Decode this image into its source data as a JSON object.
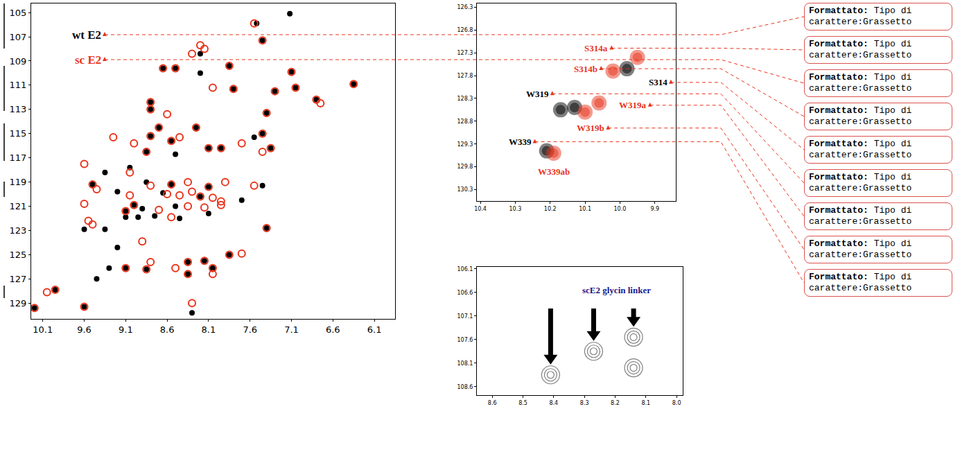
{
  "chart_data": [
    {
      "type": "scatter",
      "xlim": [
        10.24,
        5.85
      ],
      "ylim": [
        130.3,
        104.25
      ],
      "xticks": [
        10.1,
        9.6,
        9.1,
        8.6,
        8.1,
        7.6,
        7.1,
        6.6,
        6.1
      ],
      "yticks": [
        105,
        107,
        109,
        111,
        113,
        115,
        117,
        119,
        121,
        123,
        125,
        127,
        129
      ],
      "grid": false,
      "series": [
        {
          "name": "wt E2",
          "color": "#000000",
          "marker": "circle",
          "x": [
            7.12,
            7.52,
            7.45,
            8.2,
            8.65,
            8.5,
            8.2,
            7.85,
            7.1,
            6.35,
            8.8,
            8.8,
            7.8,
            7.3,
            7.05,
            6.8,
            7.4,
            8.7,
            8.25,
            8.8,
            8.55,
            7.45,
            7.55,
            8.1,
            7.95,
            8.5,
            8.85,
            7.35,
            9.35,
            9.05,
            9.5,
            9.2,
            8.85,
            8.55,
            8.1,
            7.45,
            8.65,
            8.2,
            7.7,
            9.0,
            8.9,
            9.1,
            8.5,
            8.75,
            8.95,
            9.1,
            8.45,
            8.1,
            9.35,
            9.6,
            7.4,
            9.2,
            9.3,
            9.1,
            8.85,
            8.35,
            8.15,
            8.35,
            8.05,
            7.85,
            9.45,
            9.95,
            10.2,
            9.6,
            8.3
          ],
          "values": [
            105.1,
            105.9,
            107.3,
            108.4,
            109.6,
            109.6,
            110.0,
            109.4,
            109.9,
            110.9,
            112.4,
            113.0,
            111.3,
            111.5,
            111.2,
            112.2,
            113.3,
            114.5,
            114.5,
            115.2,
            115.6,
            115.0,
            115.3,
            116.2,
            116.2,
            116.7,
            116.5,
            116.2,
            118.2,
            117.8,
            119.2,
            119.8,
            119.0,
            119.2,
            119.4,
            119.3,
            119.9,
            120.2,
            120.5,
            120.9,
            121.2,
            121.4,
            121.0,
            121.8,
            121.9,
            121.9,
            122.0,
            121.6,
            122.9,
            122.9,
            122.8,
            124.4,
            126.1,
            126.1,
            126.2,
            125.6,
            125.5,
            126.6,
            126.1,
            125.0,
            127.0,
            127.9,
            129.4,
            129.3,
            129.8
          ]
        },
        {
          "name": "sc E2",
          "color": "#e8341c",
          "marker": "circle-open",
          "x": [
            7.55,
            7.45,
            8.2,
            8.15,
            8.3,
            8.65,
            8.5,
            7.85,
            7.1,
            6.35,
            8.8,
            8.8,
            7.8,
            8.05,
            7.3,
            7.05,
            6.8,
            6.75,
            7.4,
            8.6,
            8.7,
            8.25,
            8.8,
            8.55,
            8.45,
            7.45,
            7.7,
            9.25,
            9.0,
            8.1,
            7.95,
            8.85,
            7.35,
            7.45,
            9.6,
            9.05,
            9.5,
            9.45,
            8.8,
            8.55,
            8.35,
            8.1,
            7.9,
            7.55,
            8.6,
            8.45,
            8.3,
            8.2,
            8.05,
            7.95,
            9.05,
            9.6,
            9.0,
            9.1,
            8.35,
            8.15,
            7.95,
            8.7,
            8.55,
            9.5,
            9.55,
            7.4,
            8.9,
            9.1,
            8.85,
            8.8,
            8.35,
            8.15,
            8.5,
            8.35,
            8.05,
            8.05,
            7.85,
            7.7,
            9.95,
            10.05,
            10.2,
            9.6,
            8.3
          ],
          "values": [
            105.9,
            107.3,
            107.7,
            108.0,
            108.4,
            109.6,
            109.6,
            109.4,
            109.9,
            110.9,
            112.4,
            113.0,
            111.3,
            111.2,
            111.5,
            111.2,
            112.2,
            112.5,
            113.3,
            113.4,
            114.5,
            114.5,
            115.2,
            115.6,
            115.3,
            115.0,
            115.8,
            115.3,
            115.8,
            116.2,
            116.2,
            116.5,
            116.2,
            116.5,
            117.5,
            118.2,
            119.2,
            119.6,
            119.3,
            119.2,
            119.0,
            119.4,
            119.0,
            119.3,
            120.0,
            120.1,
            119.8,
            120.2,
            120.3,
            120.6,
            120.1,
            120.8,
            120.9,
            121.4,
            121.0,
            121.1,
            120.9,
            121.3,
            121.9,
            122.5,
            122.2,
            122.8,
            123.9,
            126.1,
            126.2,
            125.6,
            125.6,
            125.5,
            126.1,
            126.6,
            126.1,
            126.6,
            125.0,
            124.9,
            127.9,
            128.1,
            129.4,
            129.3,
            129.0
          ]
        }
      ]
    },
    {
      "type": "scatter",
      "xlim": [
        10.41,
        9.84
      ],
      "ylim": [
        130.55,
        126.22
      ],
      "xticks": [
        10.4,
        10.3,
        10.2,
        10.1,
        {
          "value": 10,
          "label": "10.0"
        },
        9.9
      ],
      "yticks": [
        126.3,
        126.8,
        127.3,
        127.8,
        128.3,
        128.8,
        129.3,
        129.8,
        130.3
      ],
      "grid": false,
      "series": [
        {
          "color": "#000000",
          "marker": "circle",
          "x": [
            9.98,
            10.13,
            10.17,
            10.21
          ],
          "values": [
            127.65,
            128.5,
            128.55,
            129.45
          ]
        },
        {
          "color": "#e8341c",
          "marker": "circle",
          "x": [
            9.95,
            10.02,
            10.06,
            10.1,
            10.19
          ],
          "values": [
            127.4,
            127.7,
            128.4,
            128.6,
            129.5
          ]
        }
      ],
      "annotations": [
        {
          "text": "S314a",
          "x": 10.03,
          "y": 127.2,
          "color": "#e8341c"
        },
        {
          "text": "S314b",
          "x": 10.06,
          "y": 127.65,
          "color": "#e8341c"
        },
        {
          "text": "S314",
          "x": 9.86,
          "y": 127.95,
          "color": "#000000"
        },
        {
          "text": "W319",
          "x": 10.2,
          "y": 128.2,
          "color": "#000000"
        },
        {
          "text": "W319a",
          "x": 9.92,
          "y": 128.45,
          "color": "#e8341c"
        },
        {
          "text": "W319b",
          "x": 10.04,
          "y": 128.95,
          "color": "#e8341c"
        },
        {
          "text": "W339",
          "x": 10.25,
          "y": 129.25,
          "color": "#000000"
        },
        {
          "text": "W339ab",
          "x": 10.14,
          "y": 129.9,
          "color": "#e8341c"
        }
      ]
    },
    {
      "type": "scatter",
      "xlim": [
        8.65,
        7.98
      ],
      "ylim": [
        108.78,
        106.06
      ],
      "xticks": [
        8.6,
        8.5,
        8.4,
        8.3,
        8.2,
        8.1,
        {
          "value": 8,
          "label": "8.0"
        }
      ],
      "yticks": [
        106.1,
        106.6,
        107.1,
        107.6,
        108.1,
        108.6
      ],
      "grid": false,
      "series": [
        {
          "color": "#808080",
          "marker": "circle-open",
          "x": [
            8.41,
            8.27,
            8.14,
            8.14
          ],
          "values": [
            108.35,
            107.85,
            107.55,
            108.2
          ]
        }
      ],
      "annotations": [
        {
          "text": "scE2 glycin linker",
          "x": 8.08,
          "y": 106.55,
          "color": "#1a1a8c"
        }
      ]
    }
  ],
  "comments": [
    {
      "label": "Formattato:",
      "text": "Tipo di carattere:Grassetto"
    },
    {
      "label": "Formattato:",
      "text": "Tipo di carattere:Grassetto"
    },
    {
      "label": "Formattato:",
      "text": "Tipo di carattere:Grassetto"
    },
    {
      "label": "Formattato:",
      "text": "Tipo di carattere:Grassetto"
    },
    {
      "label": "Formattato:",
      "text": "Tipo di carattere:Grassetto"
    },
    {
      "label": "Formattato:",
      "text": "Tipo di carattere:Grassetto"
    },
    {
      "label": "Formattato:",
      "text": "Tipo di carattere:Grassetto"
    },
    {
      "label": "Formattato:",
      "text": "Tipo di carattere:Grassetto"
    },
    {
      "label": "Formattato:",
      "text": "Tipo di carattere:Grassetto"
    }
  ]
}
